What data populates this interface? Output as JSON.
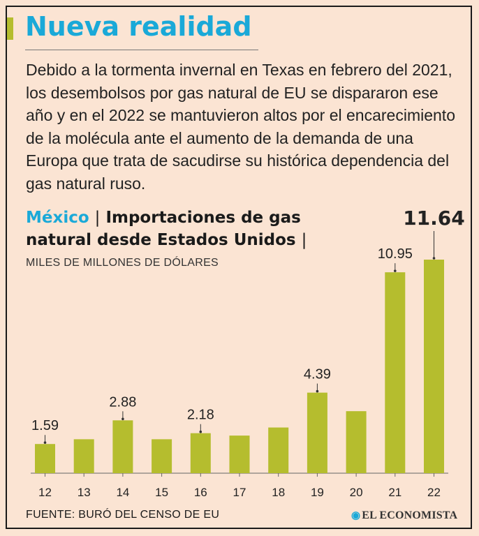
{
  "header": {
    "title": "Nueva realidad",
    "intro": "Debido a la tormenta invernal en Texas en febrero del 2021, los desembolsos por gas natural de EU se dispararon ese año y en el 2022 se mantuvieron altos por el encarecimiento de la molécula ante el aumento de la demanda de una Europa que trata de sacudirse su histórica dependencia del gas natural ruso."
  },
  "chart_title": {
    "country": "México",
    "separator": "|",
    "main": "Importaciones de gas natural desde Estados Unidos",
    "units": "MILES DE MILLONES DE DÓLARES"
  },
  "chart_data": {
    "type": "bar",
    "title": "Importaciones de gas natural desde Estados Unidos",
    "xlabel": "",
    "ylabel": "Miles de millones de dólares",
    "categories": [
      "12",
      "13",
      "14",
      "15",
      "16",
      "17",
      "18",
      "19",
      "20",
      "21",
      "22"
    ],
    "values": [
      1.59,
      1.85,
      2.88,
      1.85,
      2.18,
      2.05,
      2.49,
      4.39,
      3.38,
      10.95,
      11.64
    ],
    "data_labels": [
      {
        "index": 0,
        "text": "1.59"
      },
      {
        "index": 2,
        "text": "2.88"
      },
      {
        "index": 4,
        "text": "2.18"
      },
      {
        "index": 7,
        "text": "4.39"
      },
      {
        "index": 9,
        "text": "10.95"
      },
      {
        "index": 10,
        "text": "11.64",
        "emphasis": true
      }
    ],
    "ylim": [
      0,
      11.64
    ],
    "grid": false,
    "bar_color": "#b5bd2e"
  },
  "footer": {
    "source": "FUENTE: BURÓ DEL CENSO DE EU",
    "logo_text": "EL ECONOMISTA",
    "logo_icon": "globe-icon"
  },
  "colors": {
    "accent": "#1aa9d8",
    "bar": "#b5bd2e",
    "background": "#fbe4d3"
  }
}
